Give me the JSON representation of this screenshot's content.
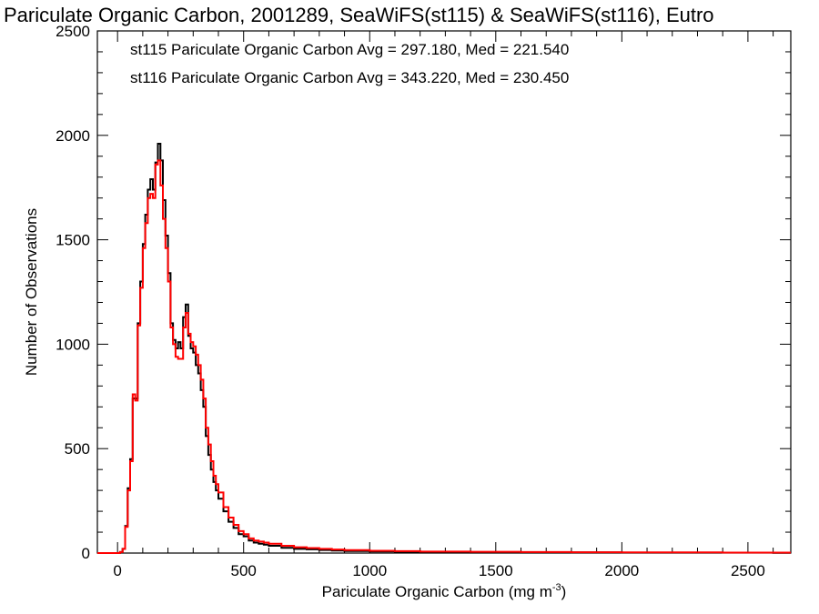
{
  "chart_data": {
    "type": "line",
    "title": "Pariculate Organic Carbon, 2001289, SeaWiFS(st115) & SeaWiFS(st116), Eutro",
    "xlabel": "Pariculate Organic Carbon (mg m",
    "xlabel_sup": "-3",
    "xlabel_close": ")",
    "ylabel": "Number of Observations",
    "xlim": [
      -80,
      2670
    ],
    "ylim": [
      0,
      2500
    ],
    "x_ticks": [
      0,
      500,
      1000,
      1500,
      2000,
      2500
    ],
    "y_ticks": [
      0,
      500,
      1000,
      1500,
      2000,
      2500
    ],
    "grid": false,
    "legend_position": "top-left",
    "step": 10,
    "series": [
      {
        "name": "st115 Pariculate Organic Carbon Avg = 297.180, Med = 221.540",
        "color": "#000000",
        "x": [
          0,
          10,
          20,
          30,
          40,
          50,
          60,
          70,
          80,
          90,
          100,
          110,
          120,
          130,
          140,
          150,
          160,
          170,
          180,
          190,
          200,
          210,
          220,
          230,
          240,
          250,
          260,
          270,
          280,
          290,
          300,
          310,
          320,
          330,
          340,
          350,
          360,
          370,
          380,
          390,
          400,
          420,
          440,
          460,
          480,
          500,
          520,
          540,
          560,
          580,
          600,
          650,
          700,
          750,
          800,
          850,
          900,
          1000,
          1100,
          1200,
          1400,
          1600,
          1800,
          2000,
          2200,
          2400,
          2600,
          2660
        ],
        "y": [
          0,
          5,
          20,
          130,
          310,
          450,
          740,
          740,
          1100,
          1300,
          1480,
          1620,
          1740,
          1790,
          1740,
          1870,
          1960,
          1880,
          1690,
          1520,
          1340,
          1100,
          1020,
          980,
          1010,
          980,
          1130,
          1190,
          1040,
          980,
          960,
          900,
          860,
          780,
          700,
          560,
          470,
          400,
          340,
          300,
          260,
          200,
          150,
          120,
          90,
          80,
          60,
          50,
          45,
          40,
          35,
          25,
          20,
          18,
          15,
          12,
          10,
          8,
          6,
          5,
          4,
          3,
          3,
          2,
          2,
          2,
          1,
          1
        ]
      },
      {
        "name": "st116 Pariculate Organic Carbon Avg = 343.220, Med = 230.450",
        "color": "#ff0000",
        "x": [
          0,
          10,
          20,
          30,
          40,
          50,
          60,
          70,
          80,
          90,
          100,
          110,
          120,
          130,
          140,
          150,
          160,
          170,
          180,
          190,
          200,
          210,
          220,
          230,
          240,
          250,
          260,
          270,
          280,
          290,
          300,
          310,
          320,
          330,
          340,
          350,
          360,
          370,
          380,
          390,
          400,
          420,
          440,
          460,
          480,
          500,
          520,
          540,
          560,
          580,
          600,
          650,
          700,
          750,
          800,
          850,
          900,
          1000,
          1100,
          1200,
          1400,
          1600,
          1800,
          2000,
          2200,
          2400,
          2600,
          2660
        ],
        "y": [
          0,
          5,
          20,
          125,
          300,
          440,
          760,
          730,
          1090,
          1270,
          1460,
          1580,
          1700,
          1720,
          1700,
          1860,
          1880,
          1760,
          1600,
          1460,
          1300,
          1080,
          1000,
          940,
          930,
          930,
          1080,
          1150,
          1050,
          1010,
          990,
          950,
          900,
          830,
          740,
          600,
          520,
          440,
          370,
          330,
          290,
          220,
          170,
          135,
          105,
          90,
          70,
          60,
          55,
          50,
          45,
          35,
          28,
          24,
          20,
          17,
          14,
          11,
          9,
          7,
          6,
          5,
          4,
          3,
          3,
          2,
          2,
          2
        ]
      }
    ]
  }
}
